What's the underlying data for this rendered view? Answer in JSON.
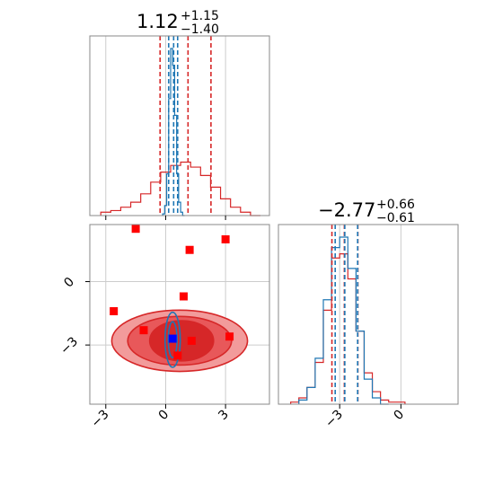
{
  "chart_data": [
    {
      "type": "histogram",
      "panel": "x-marginal",
      "title": {
        "main": "1.12",
        "upper": "+1.15",
        "lower": "−1.40"
      },
      "xlim": [
        -3.8,
        5.2
      ],
      "grid": true,
      "series": [
        {
          "color": "#d62728",
          "bins_x": [
            -3.0,
            -2.5,
            -2.0,
            -1.5,
            -1.0,
            -0.5,
            0.0,
            0.5,
            1.0,
            1.5,
            2.0,
            2.5,
            3.0,
            3.5,
            4.0,
            4.5
          ],
          "density": [
            0.02,
            0.03,
            0.05,
            0.08,
            0.13,
            0.2,
            0.26,
            0.3,
            0.32,
            0.29,
            0.24,
            0.17,
            0.1,
            0.05,
            0.02,
            0.0
          ],
          "quantiles": [
            -0.28,
            1.12,
            2.27
          ]
        },
        {
          "color": "#1f77b4",
          "bins_x": [
            -0.1,
            0.0,
            0.1,
            0.2,
            0.3,
            0.4,
            0.5,
            0.6,
            0.7,
            0.8,
            0.9
          ],
          "density": [
            0.01,
            0.06,
            0.25,
            0.7,
            1.0,
            0.9,
            0.6,
            0.25,
            0.08,
            0.02,
            0.0
          ],
          "quantiles": [
            0.15,
            0.4,
            0.6
          ]
        }
      ]
    },
    {
      "type": "histogram",
      "panel": "y-marginal",
      "title": {
        "main": "−2.77",
        "upper": "+0.66",
        "lower": "−0.61"
      },
      "xlim": [
        -6.0,
        2.8
      ],
      "grid": true,
      "series": [
        {
          "color": "#d62728",
          "bins_x": [
            -5.2,
            -4.8,
            -4.4,
            -4.0,
            -3.6,
            -3.2,
            -2.8,
            -2.4,
            -2.0,
            -1.6,
            -1.2,
            -0.8,
            -0.4,
            0.0
          ],
          "density": [
            0.01,
            0.03,
            0.08,
            0.2,
            0.45,
            0.7,
            0.72,
            0.6,
            0.35,
            0.15,
            0.06,
            0.02,
            0.01,
            0.01
          ],
          "quantiles": [
            -3.38,
            -2.77,
            -2.11
          ]
        },
        {
          "color": "#1f77b4",
          "bins_x": [
            -4.8,
            -4.4,
            -4.0,
            -3.6,
            -3.2,
            -2.8,
            -2.4,
            -2.0,
            -1.6,
            -1.2,
            -0.8
          ],
          "density": [
            0.02,
            0.08,
            0.22,
            0.5,
            0.75,
            0.8,
            0.65,
            0.35,
            0.12,
            0.03,
            0.0
          ],
          "quantiles": [
            -3.22,
            -2.75,
            -2.12
          ]
        }
      ]
    },
    {
      "type": "scatter",
      "panel": "joint",
      "xlim": [
        -3.8,
        5.2
      ],
      "ylim": [
        -5.8,
        2.7
      ],
      "grid": true,
      "contours_red": [
        {
          "cx": 0.7,
          "cy": -2.8,
          "rx": 3.4,
          "ry": 1.45,
          "fill": "#f29b9b",
          "stroke": "#d62728"
        },
        {
          "cx": 0.7,
          "cy": -2.8,
          "rx": 2.6,
          "ry": 1.15,
          "fill": "#e8585a",
          "stroke": "#d62728"
        },
        {
          "cx": 0.8,
          "cy": -2.8,
          "rx": 1.6,
          "ry": 0.95,
          "fill": "#d62728",
          "stroke": "#d62728"
        }
      ],
      "contours_blue": [
        {
          "cx": 0.35,
          "cy": -2.75,
          "rx": 0.38,
          "ry": 1.3
        },
        {
          "cx": 0.35,
          "cy": -2.75,
          "rx": 0.22,
          "ry": 0.85
        }
      ],
      "red_markers": [
        {
          "x": -1.5,
          "y": 2.5
        },
        {
          "x": 1.2,
          "y": 1.5
        },
        {
          "x": 3.0,
          "y": 2.0
        },
        {
          "x": 0.9,
          "y": -0.7
        },
        {
          "x": -2.6,
          "y": -1.4
        },
        {
          "x": -1.1,
          "y": -2.3
        },
        {
          "x": 1.3,
          "y": -2.8
        },
        {
          "x": 3.2,
          "y": -2.6
        },
        {
          "x": 0.6,
          "y": -3.5
        }
      ],
      "blue_marker": {
        "x": 0.35,
        "y": -2.7
      },
      "color_red": "#ff0000",
      "color_blue": "#0000ff"
    }
  ],
  "axes": {
    "joint_x_ticks": [
      {
        "value": -3,
        "label": "−3"
      },
      {
        "value": 0,
        "label": "0"
      },
      {
        "value": 3,
        "label": "3"
      }
    ],
    "joint_y_ticks": [
      {
        "value": 0,
        "label": "0"
      },
      {
        "value": -3,
        "label": "−3"
      }
    ],
    "ymarg_x_ticks": [
      {
        "value": -3,
        "label": "−3"
      },
      {
        "value": 0,
        "label": "0"
      }
    ]
  },
  "colors": {
    "grid": "#cccccc",
    "spine": "#888888"
  }
}
